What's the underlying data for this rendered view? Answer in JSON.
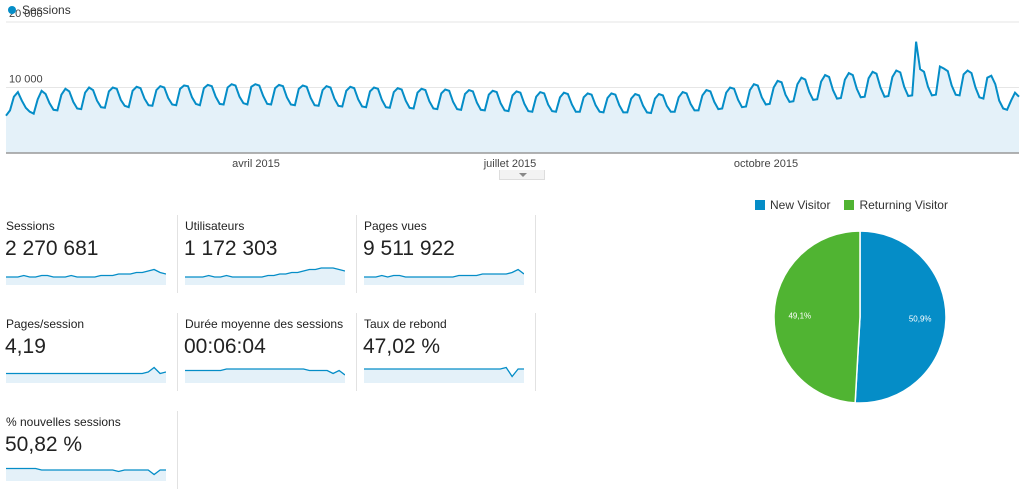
{
  "legend": {
    "series_label": "Sessions",
    "color": "#058dc7"
  },
  "chart_data": {
    "type": "area",
    "y_ticks": [
      "20 000",
      "10 000"
    ],
    "ylim": [
      0,
      20000
    ],
    "x_ticks": [
      "avril 2015",
      "juillet 2015",
      "octobre 2015"
    ],
    "series": [
      {
        "values": [
          5700,
          6500,
          8600,
          9300,
          8000,
          6900,
          6300,
          6000,
          8200,
          9500,
          9000,
          7600,
          6600,
          6500,
          8900,
          9800,
          9400,
          7800,
          6800,
          6700,
          9200,
          10000,
          9600,
          8000,
          7000,
          6900,
          9400,
          10000,
          9800,
          8100,
          7200,
          7000,
          9500,
          10100,
          9900,
          8300,
          7300,
          7200,
          9600,
          10200,
          10000,
          8400,
          7400,
          7300,
          9800,
          10300,
          10200,
          8500,
          7500,
          7300,
          9900,
          10400,
          10200,
          8600,
          7500,
          7400,
          10000,
          10500,
          10300,
          8600,
          7600,
          7400,
          10100,
          10500,
          10300,
          8700,
          7500,
          7400,
          9900,
          10400,
          10200,
          8500,
          7400,
          7300,
          9800,
          10300,
          10100,
          8400,
          7300,
          7200,
          9600,
          10200,
          10000,
          8300,
          7200,
          7100,
          9500,
          10100,
          9900,
          8200,
          7100,
          7000,
          9400,
          10000,
          9800,
          8100,
          7000,
          6900,
          9300,
          9900,
          9700,
          8000,
          6900,
          6800,
          9200,
          9800,
          9600,
          7900,
          6800,
          6700,
          9100,
          9700,
          9500,
          7800,
          6700,
          6600,
          9000,
          9600,
          9400,
          7700,
          6600,
          6500,
          8900,
          9500,
          9300,
          7600,
          6500,
          6400,
          8800,
          9400,
          9200,
          7500,
          6400,
          6300,
          8600,
          9300,
          9100,
          7400,
          6400,
          6300,
          8500,
          9200,
          9000,
          7400,
          6300,
          6300,
          8500,
          9100,
          8900,
          7300,
          6300,
          6200,
          8400,
          9100,
          8900,
          7300,
          6200,
          6200,
          8300,
          9000,
          8800,
          7200,
          6200,
          6100,
          8300,
          9000,
          8800,
          7200,
          6300,
          6300,
          8500,
          9300,
          9100,
          7500,
          6500,
          6500,
          8800,
          9600,
          9400,
          7800,
          6700,
          6800,
          9200,
          10000,
          9800,
          8100,
          7000,
          7100,
          9600,
          10500,
          10300,
          8500,
          7400,
          7500,
          10000,
          11000,
          10800,
          8900,
          7800,
          7900,
          10500,
          11500,
          11200,
          9300,
          8100,
          8200,
          10900,
          11900,
          11600,
          9600,
          8300,
          8400,
          11200,
          12200,
          11900,
          9800,
          8500,
          8600,
          11400,
          12400,
          12100,
          10000,
          8600,
          8700,
          11600,
          12600,
          12300,
          10100,
          8700,
          8800,
          17000,
          12800,
          12400,
          10100,
          8800,
          8900,
          13200,
          12900,
          12500,
          10300,
          8900,
          8800,
          12000,
          12600,
          12200,
          10000,
          8500,
          8300,
          11500,
          11800,
          10500,
          8000,
          6800,
          6600,
          8000,
          9200,
          8600
        ],
        "color": "#058dc7",
        "fill": "#e4f1f9"
      }
    ]
  },
  "metrics": [
    {
      "label": "Sessions",
      "value": "2 270 681",
      "spark": [
        4,
        4,
        4,
        5,
        4,
        4,
        5,
        5,
        4,
        4,
        4,
        5,
        4,
        4,
        4,
        4,
        5,
        5,
        5,
        6,
        6,
        6,
        7,
        7,
        8,
        9,
        7,
        6
      ]
    },
    {
      "label": "Utilisateurs",
      "value": "1 172 303",
      "spark": [
        4,
        4,
        4,
        4,
        5,
        4,
        4,
        5,
        4,
        4,
        4,
        4,
        4,
        4,
        5,
        5,
        6,
        6,
        7,
        7,
        8,
        9,
        9,
        10,
        10,
        10,
        9,
        8
      ]
    },
    {
      "label": "Pages vues",
      "value": "9 511 922",
      "spark": [
        4,
        4,
        4,
        5,
        4,
        5,
        5,
        4,
        4,
        4,
        4,
        4,
        4,
        4,
        4,
        4,
        5,
        5,
        5,
        5,
        6,
        6,
        6,
        6,
        6,
        7,
        9,
        6
      ]
    },
    {
      "label": "Pages/session",
      "value": "4,19",
      "spark": [
        5,
        5,
        5,
        5,
        5,
        5,
        5,
        5,
        5,
        5,
        5,
        5,
        5,
        5,
        5,
        5,
        5,
        5,
        5,
        5,
        5,
        5,
        5,
        5,
        6,
        9,
        5,
        6
      ]
    },
    {
      "label": "Durée moyenne des sessions",
      "value": "00:06:04",
      "spark": [
        7,
        7,
        7,
        7,
        7,
        7,
        7,
        8,
        8,
        8,
        8,
        8,
        8,
        8,
        8,
        8,
        8,
        8,
        8,
        8,
        8,
        7,
        7,
        7,
        7,
        5,
        7,
        4
      ]
    },
    {
      "label": "Taux de rebond",
      "value": "47,02 %",
      "spark": [
        8,
        8,
        8,
        8,
        8,
        8,
        8,
        8,
        8,
        8,
        8,
        8,
        8,
        8,
        8,
        8,
        8,
        8,
        8,
        8,
        8,
        8,
        8,
        8,
        9,
        3,
        8,
        8
      ]
    },
    {
      "label": "% nouvelles sessions",
      "value": "50,82 %",
      "spark": [
        7,
        7,
        7,
        7,
        7,
        7,
        6,
        6,
        6,
        6,
        6,
        6,
        6,
        6,
        6,
        6,
        6,
        6,
        6,
        5,
        6,
        6,
        6,
        6,
        6,
        3,
        6,
        6
      ]
    }
  ],
  "pie_chart": {
    "type": "pie",
    "legend": [
      {
        "name": "New Visitor",
        "color": "#058dc7"
      },
      {
        "name": "Returning Visitor",
        "color": "#50b432"
      }
    ],
    "slices": [
      {
        "name": "New Visitor",
        "value": 50.9,
        "label": "50,9%",
        "color": "#058dc7"
      },
      {
        "name": "Returning Visitor",
        "value": 49.1,
        "label": "49,1%",
        "color": "#50b432"
      }
    ]
  }
}
